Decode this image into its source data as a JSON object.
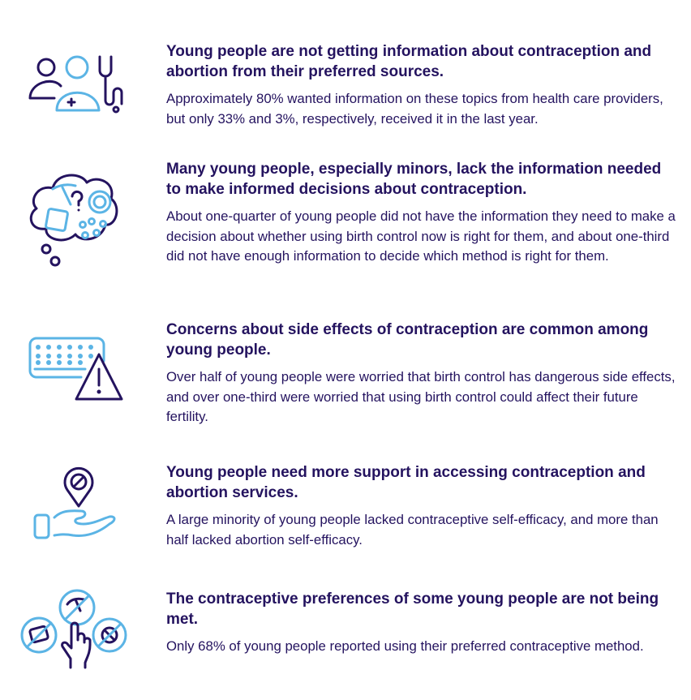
{
  "colors": {
    "navy": "#24135f",
    "light_blue": "#5bb4e5"
  },
  "findings": [
    {
      "icon": "health-care-provider-icon",
      "heading": "Young people are not getting information about contraception and abortion from their preferred sources.",
      "body": "Approximately 80% wanted information on these topics from health care providers, but only 33% and 3%, respectively, received it in the last year."
    },
    {
      "icon": "thought-cloud-question-icon",
      "heading": "Many young people, especially minors, lack the information needed to make informed decisions about contraception.",
      "body": "About one-quarter of young people did not have the information they need to make a decision about whether using birth control now is right for them, and about one-third did not have enough information to decide which method is right for them."
    },
    {
      "icon": "pill-pack-warning-icon",
      "heading": "Concerns about side effects of contraception are common among young people.",
      "body": "Over half of young people were worried that birth control has dangerous side effects, and over one-third were worried that using birth control could affect their future fertility."
    },
    {
      "icon": "hand-location-pin-icon",
      "heading": "Young people need more support in accessing contraception and abortion services.",
      "body": "A large minority of young people lacked contraceptive self-efficacy, and more than half lacked abortion self-efficacy."
    },
    {
      "icon": "hand-choosing-methods-icon",
      "heading": "The contraceptive preferences of some young people are not being met.",
      "body": "Only 68% of young people reported using their preferred contraceptive method."
    }
  ]
}
